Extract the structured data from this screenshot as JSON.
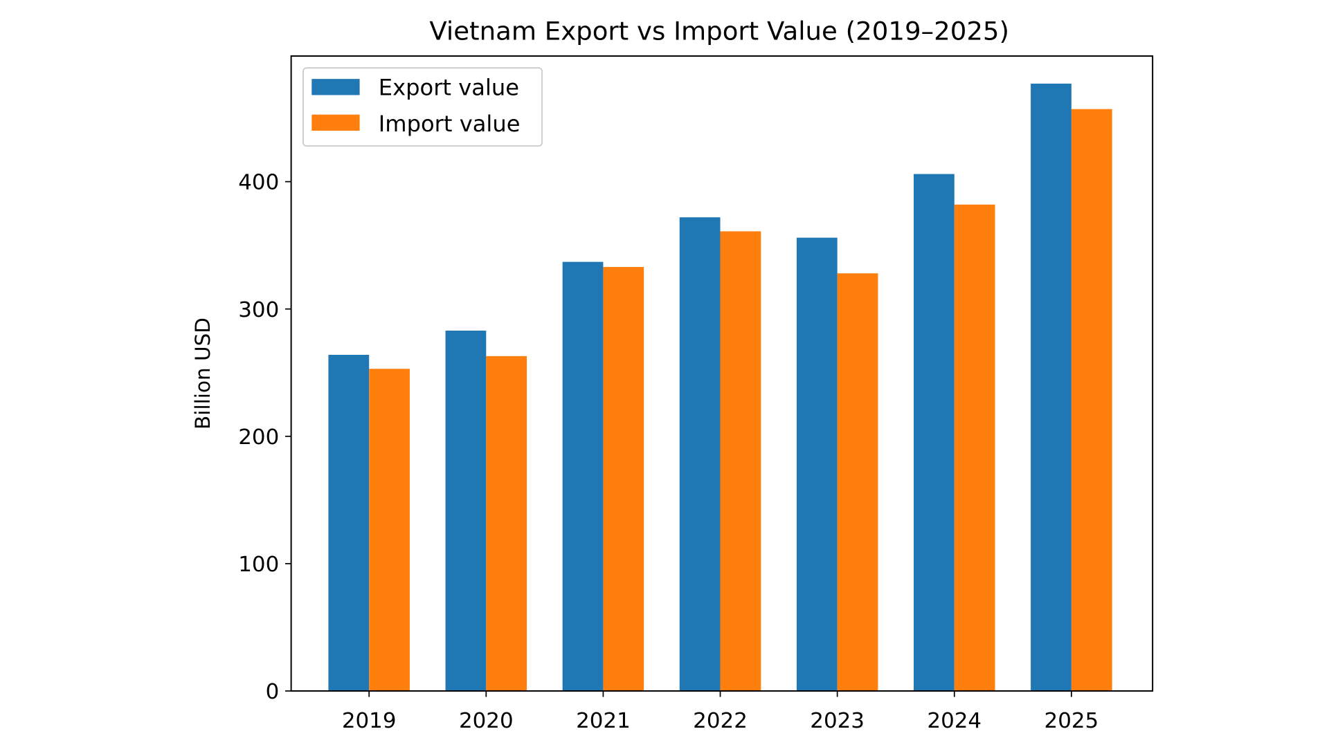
{
  "chart_data": {
    "type": "bar",
    "title": "Vietnam Export vs Import Value (2019–2025)",
    "xlabel": "",
    "ylabel": "Billion USD",
    "categories": [
      "2019",
      "2020",
      "2021",
      "2022",
      "2023",
      "2024",
      "2025"
    ],
    "series": [
      {
        "name": "Export value",
        "color": "#1f77b4",
        "values": [
          264,
          283,
          337,
          372,
          356,
          406,
          477
        ]
      },
      {
        "name": "Import value",
        "color": "#ff7f0e",
        "values": [
          253,
          263,
          333,
          361,
          328,
          382,
          457
        ]
      }
    ],
    "yticks": [
      0,
      100,
      200,
      300,
      400
    ],
    "ylim": [
      0,
      499
    ],
    "grid": false,
    "legend": "top-left"
  }
}
